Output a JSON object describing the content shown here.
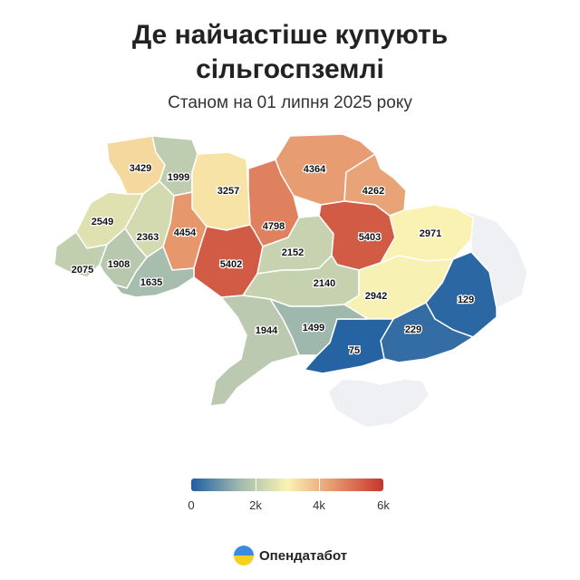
{
  "title": {
    "line1": "Де найчастіше купують",
    "line2": "сільгоспземлі"
  },
  "subtitle": "Станом на 01 липня 2025 року",
  "scale": {
    "min": 0,
    "max": 6000,
    "ticks": [
      {
        "value": 0,
        "label": "0"
      },
      {
        "value": 2000,
        "label": "2k"
      },
      {
        "value": 4000,
        "label": "4k"
      },
      {
        "value": 6000,
        "label": "6k"
      }
    ],
    "colors": [
      "#1f5fa2",
      "#9fb8ad",
      "#fbf3b3",
      "#e5946a",
      "#c6352e"
    ]
  },
  "regions": [
    {
      "id": "volyn",
      "value": 3429
    },
    {
      "id": "rivne",
      "value": 1999
    },
    {
      "id": "zhytomyr",
      "value": 3257
    },
    {
      "id": "kyiv",
      "value": 4798
    },
    {
      "id": "chernihiv",
      "value": 4364
    },
    {
      "id": "sumy",
      "value": 4262
    },
    {
      "id": "lviv",
      "value": 2549
    },
    {
      "id": "ternopil",
      "value": 2363
    },
    {
      "id": "khmelnytskyi",
      "value": 4454
    },
    {
      "id": "vinnytsia",
      "value": 5402
    },
    {
      "id": "cherkasy",
      "value": 2152
    },
    {
      "id": "poltava",
      "value": 5403
    },
    {
      "id": "kharkiv",
      "value": 2971
    },
    {
      "id": "zakarpattia",
      "value": 2075
    },
    {
      "id": "ivano-frankivsk",
      "value": 1908
    },
    {
      "id": "chernivtsi",
      "value": 1635
    },
    {
      "id": "kirovohrad",
      "value": 2140
    },
    {
      "id": "dnipropetrovsk",
      "value": 2942
    },
    {
      "id": "luhansk",
      "value": null
    },
    {
      "id": "donetsk",
      "value": 129
    },
    {
      "id": "zaporizhzhia",
      "value": 229
    },
    {
      "id": "kherson",
      "value": 75
    },
    {
      "id": "mykolaiv",
      "value": 1499
    },
    {
      "id": "odesa",
      "value": 1944
    },
    {
      "id": "crimea",
      "value": null
    }
  ],
  "no_data_color": "#eef0f4",
  "brand": {
    "name": "Опендатабот",
    "logo_colors": [
      "#3a8dde",
      "#f5d020"
    ]
  }
}
